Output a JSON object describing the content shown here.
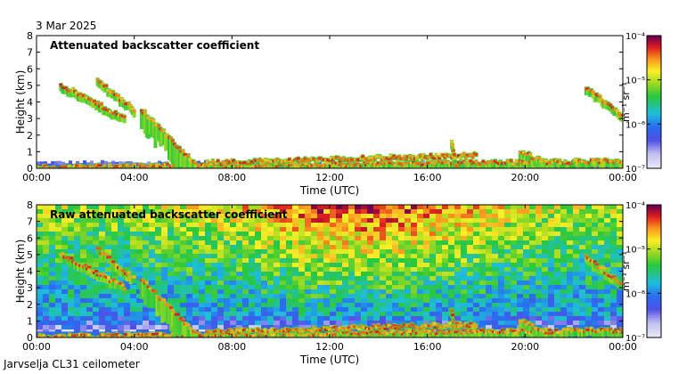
{
  "header": {
    "date": "3 Mar 2025"
  },
  "footer": {
    "site": "Jarvselja CL31 ceilometer"
  },
  "chart_data": [
    {
      "type": "heatmap",
      "title": "Attenuated backscatter coefficient",
      "xlabel": "Time (UTC)",
      "ylabel": "Height (km)",
      "xlim": [
        0,
        24
      ],
      "ylim": [
        0,
        8
      ],
      "x_ticks": [
        0,
        4,
        8,
        12,
        16,
        20,
        24
      ],
      "x_tick_labels": [
        "00:00",
        "04:00",
        "08:00",
        "12:00",
        "16:00",
        "20:00",
        "00:00"
      ],
      "y_ticks": [
        0,
        1,
        2,
        3,
        4,
        5,
        6,
        7,
        8
      ],
      "y_tick_labels": [
        "0",
        "1",
        "2",
        "3",
        "4",
        "5",
        "6",
        "7",
        "8"
      ],
      "colorbar": {
        "label": "m⁻¹ sr⁻¹",
        "scale": "log",
        "range": [
          1e-07,
          0.0001
        ],
        "tick_labels": [
          "10⁻⁴",
          "10⁻⁵",
          "10⁻⁶",
          "10⁻⁷"
        ]
      },
      "features": [
        {
          "name": "surface aerosol layer",
          "t": [
            0,
            24
          ],
          "h": [
            0,
            0.4
          ]
        },
        {
          "name": "descending cloud layer",
          "t": [
            1.0,
            3.6
          ],
          "h": [
            5.0,
            3.0
          ]
        },
        {
          "name": "cloud streak",
          "t": [
            2.5,
            4.0
          ],
          "h": [
            5.3,
            3.5
          ]
        },
        {
          "name": "low cloud and precipitation",
          "t": [
            4.3,
            6.5
          ],
          "h": [
            3.5,
            0.2
          ]
        },
        {
          "name": "boundary layer top",
          "t": [
            7.0,
            18.0
          ],
          "h": [
            0.3,
            0.75
          ]
        },
        {
          "name": "convective plume",
          "t": [
            17.0,
            17.2
          ],
          "h": [
            1.5,
            0.0
          ]
        },
        {
          "name": "low cloud",
          "t": [
            19.8,
            21.0
          ],
          "h": [
            1.0,
            0.2
          ]
        },
        {
          "name": "high cloud",
          "t": [
            22.5,
            24.0
          ],
          "h": [
            4.8,
            3.2
          ]
        }
      ]
    },
    {
      "type": "heatmap",
      "title": "Raw attenuated backscatter coefficient",
      "xlabel": "Time (UTC)",
      "ylabel": "Height (km)",
      "xlim": [
        0,
        24
      ],
      "ylim": [
        0,
        8
      ],
      "x_ticks": [
        0,
        4,
        8,
        12,
        16,
        20,
        24
      ],
      "x_tick_labels": [
        "00:00",
        "04:00",
        "08:00",
        "12:00",
        "16:00",
        "20:00",
        "00:00"
      ],
      "y_ticks": [
        0,
        1,
        2,
        3,
        4,
        5,
        6,
        7,
        8
      ],
      "y_tick_labels": [
        "0",
        "1",
        "2",
        "3",
        "4",
        "5",
        "6",
        "7",
        "8"
      ],
      "colorbar": {
        "label": "m⁻¹ sr⁻¹",
        "scale": "log",
        "range": [
          1e-07,
          0.0001
        ],
        "tick_labels": [
          "10⁻⁴",
          "10⁻⁵",
          "10⁻⁶",
          "10⁻⁷"
        ]
      }
    }
  ]
}
